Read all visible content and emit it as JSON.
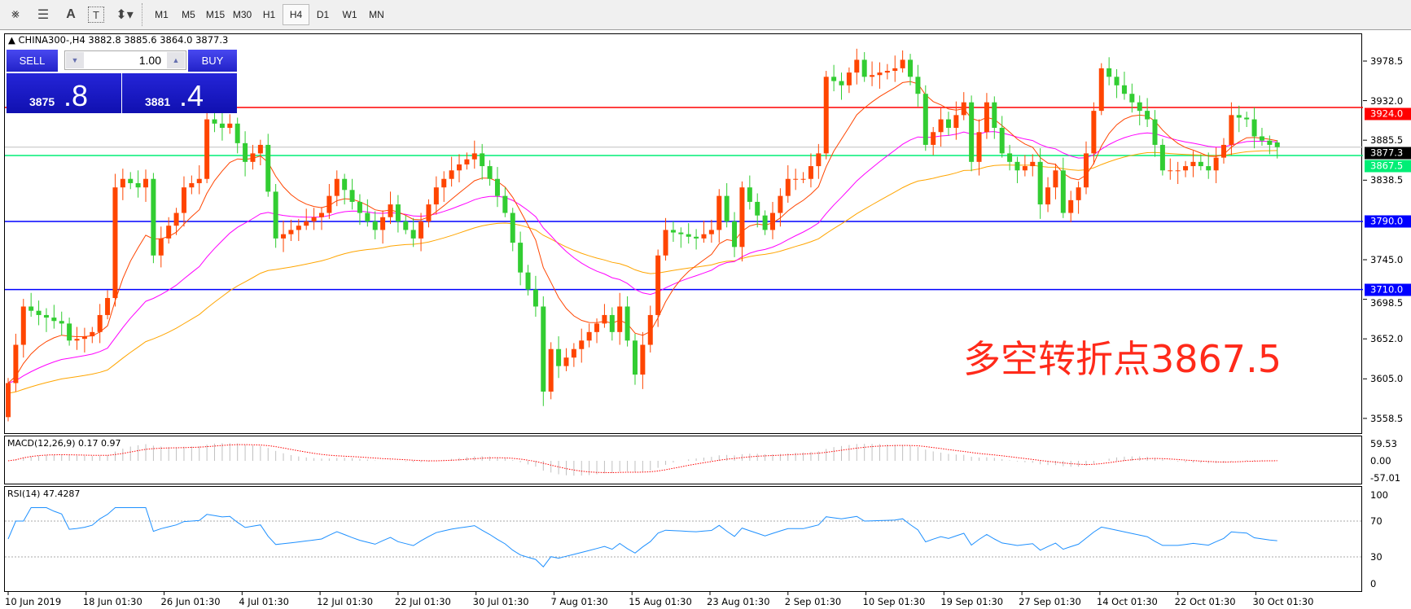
{
  "toolbar": {
    "icons": [
      "elliott-wave-icon",
      "fibonacci-icon",
      "text-icon",
      "text-label-icon",
      "arrows-icon"
    ],
    "text_icon": "A",
    "timeframes": [
      "M1",
      "M5",
      "M15",
      "M30",
      "H1",
      "H4",
      "D1",
      "W1",
      "MN"
    ],
    "active_timeframe": "H4"
  },
  "chart": {
    "symbol_line": "CHINA300-,H4  3882.8 3885.6 3864.0 3877.3",
    "annotation": "多空转折点3867.5"
  },
  "trade_panel": {
    "sell_label": "SELL",
    "buy_label": "BUY",
    "lot": "1.00",
    "sell_price_main": "3875",
    "sell_price_big": ".8",
    "buy_price_main": "3881",
    "buy_price_big": ".4"
  },
  "price_axis": [
    "3978.5",
    "3932.0",
    "3885.5",
    "3838.5",
    "3745.0",
    "3698.5",
    "3652.0",
    "3605.0",
    "3558.5"
  ],
  "levels": [
    {
      "value": "3924.0",
      "color": "#ff0000"
    },
    {
      "value": "3877.3",
      "color": "#000000",
      "line": "#c0c0c0"
    },
    {
      "value": "3867.5",
      "color": "#00ee76"
    },
    {
      "value": "3790.0",
      "color": "#0000ff"
    },
    {
      "value": "3710.0",
      "color": "#0000ff"
    }
  ],
  "colors": {
    "bull": "#ff4500",
    "bear": "#32cd32",
    "ma_fast": "#ff4500",
    "ma_mid": "#ff00ff",
    "ma_slow": "#ffa500",
    "rsi": "#1e90ff",
    "macd_signal": "#ff0000",
    "macd_hist": "#c0c0c0"
  },
  "macd": {
    "label": "MACD(12,26,9) 0.17 0.97",
    "axis": [
      "59.53",
      "0.00",
      "-57.01"
    ]
  },
  "rsi": {
    "label": "RSI(14) 47.4287",
    "axis": [
      "100",
      "70",
      "30",
      "0"
    ],
    "levels": [
      70,
      30
    ]
  },
  "x_labels": [
    "10 Jun 2019",
    "18 Jun 01:30",
    "26 Jun 01:30",
    "4 Jul 01:30",
    "12 Jul 01:30",
    "22 Jul 01:30",
    "30 Jul 01:30",
    "7 Aug 01:30",
    "15 Aug 01:30",
    "23 Aug 01:30",
    "2 Sep 01:30",
    "10 Sep 01:30",
    "19 Sep 01:30",
    "27 Sep 01:30",
    "14 Oct 01:30",
    "22 Oct 01:30",
    "30 Oct 01:30"
  ],
  "chart_data": {
    "type": "candlestick",
    "ylim": [
      3540,
      4005
    ],
    "last": {
      "open": 3882.8,
      "high": 3885.6,
      "low": 3864.0,
      "close": 3877.3
    },
    "closes": [
      3600,
      3645,
      3690,
      3685,
      3680,
      3677,
      3673,
      3670,
      3650,
      3652,
      3655,
      3660,
      3680,
      3700,
      3830,
      3840,
      3835,
      3830,
      3840,
      3750,
      3770,
      3785,
      3800,
      3830,
      3835,
      3840,
      3910,
      3905,
      3900,
      3905,
      3882,
      3860,
      3870,
      3880,
      3825,
      3770,
      3775,
      3780,
      3785,
      3790,
      3795,
      3800,
      3820,
      3840,
      3827,
      3813,
      3800,
      3790,
      3780,
      3795,
      3810,
      3790,
      3780,
      3770,
      3790,
      3810,
      3830,
      3840,
      3850,
      3857,
      3863,
      3870,
      3855,
      3840,
      3820,
      3800,
      3765,
      3730,
      3710,
      3690,
      3590,
      3640,
      3620,
      3630,
      3640,
      3650,
      3660,
      3670,
      3680,
      3660,
      3690,
      3650,
      3610,
      3645,
      3680,
      3750,
      3780,
      3777,
      3775,
      3772,
      3770,
      3775,
      3780,
      3820,
      3790,
      3760,
      3830,
      3813,
      3797,
      3780,
      3800,
      3820,
      3840,
      3840,
      3840,
      3855,
      3870,
      3960,
      3955,
      3950,
      3965,
      3980,
      3960,
      3962,
      3965,
      3967,
      3970,
      3980,
      3960,
      3940,
      3880,
      3895,
      3910,
      3900,
      3915,
      3930,
      3860,
      3895,
      3930,
      3900,
      3870,
      3860,
      3850,
      3855,
      3860,
      3810,
      3830,
      3850,
      3800,
      3815,
      3830,
      3870,
      3920,
      3970,
      3960,
      3950,
      3940,
      3930,
      3920,
      3910,
      3880,
      3850,
      3850,
      3850,
      3855,
      3860,
      3855,
      3850,
      3865,
      3880,
      3915,
      3912,
      3910,
      3890,
      3885,
      3880,
      3877.3
    ]
  }
}
